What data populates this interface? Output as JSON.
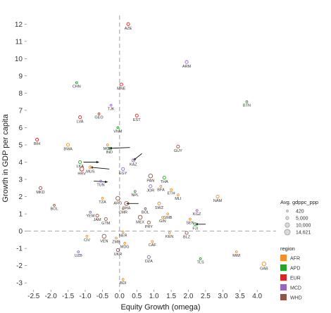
{
  "chart_data": {
    "type": "scatter",
    "title": "",
    "xlabel": "Equity Growth (omega)",
    "ylabel": "Growth in GDP per capita",
    "xlim": [
      -2.7,
      4.55
    ],
    "ylim": [
      -3.4,
      12.5
    ],
    "x_ticks": [
      "-2.5",
      "-2.0",
      "-1.5",
      "-1.0",
      "-0.5",
      "0.0",
      "0.5",
      "1.0",
      "1.5",
      "2.0",
      "2.5",
      "3.0",
      "3.5",
      "4.0"
    ],
    "y_ticks": [
      "-3",
      "-2",
      "-1",
      "0",
      "1",
      "2",
      "3",
      "4",
      "5",
      "6",
      "7",
      "8",
      "9",
      "10",
      "11",
      "12"
    ],
    "reference_lines": {
      "x": 0,
      "y": 0
    },
    "grid": false,
    "legend_position": "right",
    "size_legend": {
      "title": "Avg. gdppc_ppp",
      "entries": [
        "420",
        "5,000",
        "10,000",
        "14,621"
      ]
    },
    "color_legend": {
      "title": "region",
      "entries": [
        {
          "name": "AFR",
          "color": "#f28e2b"
        },
        {
          "name": "APD",
          "color": "#2ca02c"
        },
        {
          "name": "EUR",
          "color": "#d62728"
        },
        {
          "name": "MCD",
          "color": "#9467bd"
        },
        {
          "name": "WHD",
          "color": "#8c564b"
        }
      ]
    },
    "points": [
      {
        "label": "AZE",
        "x": 0.25,
        "y": 12.0,
        "region": "EUR",
        "size": 2
      },
      {
        "label": "ARM",
        "x": 1.95,
        "y": 9.8,
        "region": "MCD",
        "size": 2
      },
      {
        "label": "CHN",
        "x": -1.25,
        "y": 8.6,
        "region": "APD",
        "size": 1
      },
      {
        "label": "MNE",
        "x": 0.05,
        "y": 8.5,
        "region": "EUR",
        "size": 2
      },
      {
        "label": "BTN",
        "x": 3.7,
        "y": 7.5,
        "region": "APD",
        "size": 1
      },
      {
        "label": "TJK",
        "x": -0.25,
        "y": 7.3,
        "region": "MCD",
        "size": 1
      },
      {
        "label": "GEO",
        "x": -0.6,
        "y": 6.8,
        "region": "EUR",
        "size": 1
      },
      {
        "label": "LVA",
        "x": -1.15,
        "y": 6.6,
        "region": "EUR",
        "size": 2
      },
      {
        "label": "EST",
        "x": 0.5,
        "y": 6.7,
        "region": "EUR",
        "size": 2
      },
      {
        "label": "VNM",
        "x": -0.05,
        "y": 6.0,
        "region": "APD",
        "size": 1
      },
      {
        "label": "BIH",
        "x": -2.4,
        "y": 5.3,
        "region": "EUR",
        "size": 2
      },
      {
        "label": "BWA",
        "x": -1.5,
        "y": 5.0,
        "region": "AFR",
        "size": 2
      },
      {
        "label": "MOZ",
        "x": -0.35,
        "y": 5.0,
        "region": "AFR",
        "size": 1
      },
      {
        "label": "IND",
        "x": -0.3,
        "y": 4.8,
        "region": "APD",
        "size": 1
      },
      {
        "label": "GUY",
        "x": 1.7,
        "y": 4.9,
        "region": "WHD",
        "size": 2
      },
      {
        "label": "KAZ",
        "x": 0.4,
        "y": 4.1,
        "region": "MCD",
        "size": 2
      },
      {
        "label": "LKA",
        "x": -1.15,
        "y": 4.0,
        "region": "APD",
        "size": 2
      },
      {
        "label": "HRV",
        "x": -1.1,
        "y": 3.6,
        "region": "EUR",
        "size": 3
      },
      {
        "label": "MUS",
        "x": -0.85,
        "y": 3.7,
        "region": "AFR",
        "size": 2
      },
      {
        "label": "EGY",
        "x": 0.1,
        "y": 3.6,
        "region": "MCD",
        "size": 2
      },
      {
        "label": "PAN",
        "x": 0.9,
        "y": 3.2,
        "region": "WHD",
        "size": 3
      },
      {
        "label": "THA",
        "x": 1.3,
        "y": 3.1,
        "region": "APD",
        "size": 2
      },
      {
        "label": "TUN",
        "x": -0.55,
        "y": 2.9,
        "region": "MCD",
        "size": 1
      },
      {
        "label": "JOR",
        "x": 0.9,
        "y": 2.6,
        "region": "MCD",
        "size": 2
      },
      {
        "label": "BFA",
        "x": 1.2,
        "y": 2.6,
        "region": "AFR",
        "size": 1
      },
      {
        "label": "ETH",
        "x": 1.5,
        "y": 2.4,
        "region": "AFR",
        "size": 1
      },
      {
        "label": "MLI",
        "x": 1.7,
        "y": 2.1,
        "region": "AFR",
        "size": 1
      },
      {
        "label": "NPL",
        "x": 0.45,
        "y": 2.3,
        "region": "APD",
        "size": 1
      },
      {
        "label": "MKD",
        "x": -2.3,
        "y": 2.5,
        "region": "EUR",
        "size": 2
      },
      {
        "label": "TZA",
        "x": -0.5,
        "y": 1.9,
        "region": "AFR",
        "size": 1
      },
      {
        "label": "ARG",
        "x": -0.05,
        "y": 1.9,
        "region": "WHD",
        "size": 3
      },
      {
        "label": "NAM",
        "x": 2.85,
        "y": 2.0,
        "region": "AFR",
        "size": 2
      },
      {
        "label": "BHA",
        "x": 0.2,
        "y": 1.6,
        "region": "WHD",
        "size": 3
      },
      {
        "label": "CMR",
        "x": 0.1,
        "y": 1.3,
        "region": "AFR",
        "size": 1
      },
      {
        "label": "BOL",
        "x": -1.9,
        "y": 1.5,
        "region": "WHD",
        "size": 1
      },
      {
        "label": "SWZ",
        "x": 1.15,
        "y": 1.6,
        "region": "AFR",
        "size": 2
      },
      {
        "label": "BOL",
        "x": 0.75,
        "y": 1.3,
        "region": "WHD",
        "size": 1
      },
      {
        "label": "KGZ",
        "x": 2.25,
        "y": 1.2,
        "region": "MCD",
        "size": 1
      },
      {
        "label": "YEM",
        "x": -0.85,
        "y": 1.1,
        "region": "MCD",
        "size": 1
      },
      {
        "label": "JAM",
        "x": -0.65,
        "y": 0.9,
        "region": "WHD",
        "size": 2
      },
      {
        "label": "MEX",
        "x": 0.6,
        "y": 0.8,
        "region": "WHD",
        "size": 3
      },
      {
        "label": "GMB",
        "x": 1.4,
        "y": 1.0,
        "region": "AFR",
        "size": 1
      },
      {
        "label": "GTM",
        "x": -0.4,
        "y": 0.7,
        "region": "WHD",
        "size": 2
      },
      {
        "label": "SEN",
        "x": 2.05,
        "y": 0.7,
        "region": "AFR",
        "size": 1
      },
      {
        "label": "PRY",
        "x": 0.85,
        "y": 0.5,
        "region": "WHD",
        "size": 2
      },
      {
        "label": "GIN",
        "x": 1.25,
        "y": 0.8,
        "region": "AFR",
        "size": 1
      },
      {
        "label": "FJI",
        "x": 2.2,
        "y": 0.4,
        "region": "APD",
        "size": 2
      },
      {
        "label": "KEN",
        "x": 1.45,
        "y": -0.1,
        "region": "AFR",
        "size": 1
      },
      {
        "label": "BLZ",
        "x": 1.95,
        "y": -0.1,
        "region": "WHD",
        "size": 2
      },
      {
        "label": "NER",
        "x": 0.1,
        "y": -0.05,
        "region": "AFR",
        "size": 1
      },
      {
        "label": "CIV",
        "x": -0.95,
        "y": -0.3,
        "region": "AFR",
        "size": 1
      },
      {
        "label": "VEN",
        "x": -0.45,
        "y": -0.3,
        "region": "WHD",
        "size": 3
      },
      {
        "label": "ZMB",
        "x": -0.1,
        "y": -0.4,
        "region": "AFR",
        "size": 1
      },
      {
        "label": "CAF",
        "x": 0.95,
        "y": -0.6,
        "region": "AFR",
        "size": 1
      },
      {
        "label": "MDG",
        "x": 0.15,
        "y": -0.7,
        "region": "AFR",
        "size": 1
      },
      {
        "label": "UZB",
        "x": -1.2,
        "y": -1.2,
        "region": "MCD",
        "size": 1
      },
      {
        "label": "UKR",
        "x": -0.05,
        "y": -1.1,
        "region": "EUR",
        "size": 2
      },
      {
        "label": "MWI",
        "x": 3.4,
        "y": -1.2,
        "region": "AFR",
        "size": 1
      },
      {
        "label": "DZA",
        "x": 0.85,
        "y": -1.5,
        "region": "MCD",
        "size": 2
      },
      {
        "label": "TLS",
        "x": 2.35,
        "y": -1.6,
        "region": "APD",
        "size": 1
      },
      {
        "label": "GAB",
        "x": 4.2,
        "y": -1.9,
        "region": "AFR",
        "size": 3
      },
      {
        "label": "BDI",
        "x": 0.1,
        "y": -2.8,
        "region": "AFR",
        "size": 1
      }
    ],
    "annotation_arrows": [
      {
        "label": "IND",
        "from": [
          0.3,
          4.85
        ],
        "to": [
          -0.3,
          4.8
        ]
      },
      {
        "label": "KAZ",
        "from": [
          0.65,
          4.5
        ],
        "to": [
          0.4,
          4.1
        ]
      },
      {
        "label": "LKA",
        "from": [
          -1.05,
          4.0
        ],
        "to": [
          -0.6,
          4.0
        ]
      },
      {
        "label": "MUS",
        "from": [
          -0.3,
          3.6
        ],
        "to": [
          -0.85,
          3.7
        ]
      },
      {
        "label": "TUN",
        "from": [
          -0.75,
          2.9
        ],
        "to": [
          -0.35,
          2.85
        ]
      },
      {
        "label": "BHA",
        "from": [
          0.55,
          1.6
        ],
        "to": [
          0.2,
          1.6
        ]
      },
      {
        "label": "FJI",
        "from": [
          2.5,
          0.4
        ],
        "to": [
          2.2,
          0.4
        ]
      }
    ]
  }
}
